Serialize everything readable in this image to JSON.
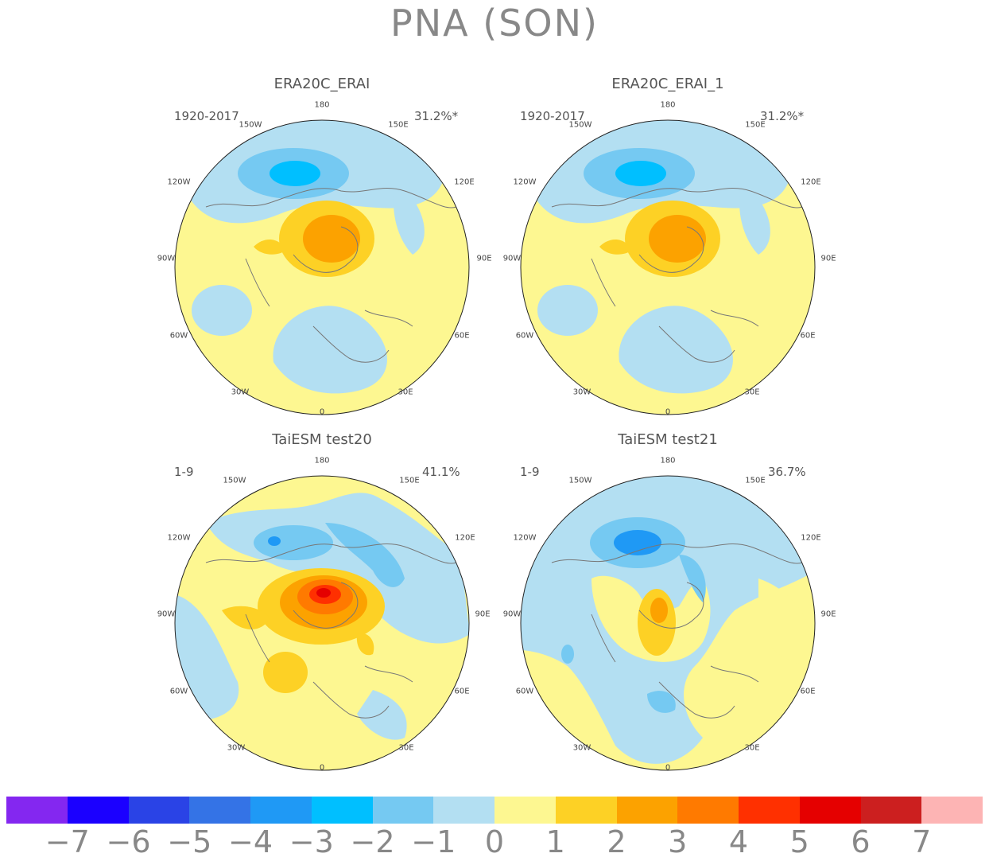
{
  "title": "PNA (SON)",
  "panels": [
    {
      "title": "ERA20C_ERAI",
      "period": "1920-2017",
      "percent": "31.2%*"
    },
    {
      "title": "ERA20C_ERAI_1",
      "period": "1920-2017",
      "percent": "31.2%*"
    },
    {
      "title": "TaiESM test20",
      "period": "1-9",
      "percent": "41.1%"
    },
    {
      "title": "TaiESM test21",
      "period": "1-9",
      "percent": "36.7%"
    }
  ],
  "longitude_labels": {
    "top": "180",
    "upper_left": "150W",
    "upper_right": "150E",
    "left_upper": "120W",
    "right_upper": "120E",
    "left": "90W",
    "right": "90E",
    "left_lower": "60W",
    "right_lower": "60E",
    "lower_left": "30W",
    "lower_right": "30E",
    "bottom": "0"
  },
  "colorbar": {
    "ticks": [
      "−7",
      "−6",
      "−5",
      "−4",
      "−3",
      "−2",
      "−1",
      "0",
      "1",
      "2",
      "3",
      "4",
      "5",
      "6",
      "7"
    ],
    "colors": [
      "#8427f0",
      "#1b00ff",
      "#2a43e6",
      "#3473e6",
      "#1f99f5",
      "#00bfff",
      "#75c9f2",
      "#b3dff2",
      "#fdf791",
      "#fdd125",
      "#fca200",
      "#ff7a00",
      "#ff3000",
      "#e50000",
      "#cc1f1f",
      "#fdb4b4"
    ]
  }
}
